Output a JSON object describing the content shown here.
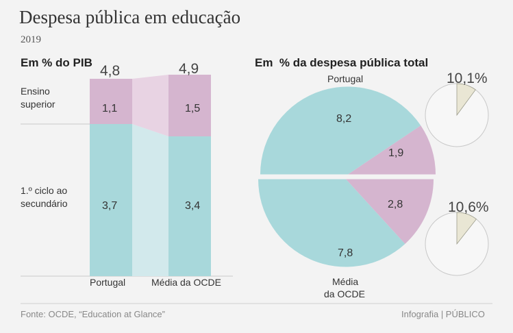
{
  "title": "Despesa pública em educação",
  "year": "2019",
  "left_heading": "Em % do PIB",
  "right_heading": "Em  % da despesa pública total",
  "footer": {
    "source": "Fonte: OCDE, “Education at Glance”",
    "credit": "Infografia | PÚBLICO"
  },
  "colors": {
    "teal": "#a8d8db",
    "pink": "#d5b5cf",
    "teal_light": "#d2e9ec",
    "pink_light": "#e8d3e3",
    "mini_fill": "#e9e6d4"
  },
  "chart_data": [
    {
      "type": "bar",
      "stacked": true,
      "title": "Em % do PIB",
      "categories": [
        "Portugal",
        "Média da OCDE"
      ],
      "series": [
        {
          "name": "1.º ciclo ao secundário",
          "values": [
            3.7,
            3.4
          ],
          "labels": [
            "3,7",
            "3,4"
          ]
        },
        {
          "name": "Ensino superior",
          "values": [
            1.1,
            1.5
          ],
          "labels": [
            "1,1",
            "1,5"
          ]
        }
      ],
      "totals": [
        4.8,
        4.9
      ],
      "total_labels": [
        "4,8",
        "4,9"
      ],
      "series_labels": {
        "lower_line1": "1.º ciclo ao",
        "lower_line2": "secundário",
        "upper_line1": "Ensino",
        "upper_line2": "superior"
      }
    },
    {
      "type": "pie",
      "title": "Em  % da despesa pública total",
      "pies": [
        {
          "name": "Portugal",
          "label": "Portugal",
          "half": "top",
          "slices": [
            {
              "name": "1.º ciclo ao secundário",
              "value": 8.2,
              "label": "8,2"
            },
            {
              "name": "Ensino superior",
              "value": 1.9,
              "label": "1,9"
            }
          ],
          "share": 10.1,
          "share_label": "10,1%"
        },
        {
          "name": "Média da OCDE",
          "label_line1": "Média",
          "label_line2": "da OCDE",
          "half": "bottom",
          "slices": [
            {
              "name": "1.º ciclo ao secundário",
              "value": 7.8,
              "label": "7,8"
            },
            {
              "name": "Ensino superior",
              "value": 2.8,
              "label": "2,8"
            }
          ],
          "share": 10.6,
          "share_label": "10,6%"
        }
      ]
    }
  ]
}
